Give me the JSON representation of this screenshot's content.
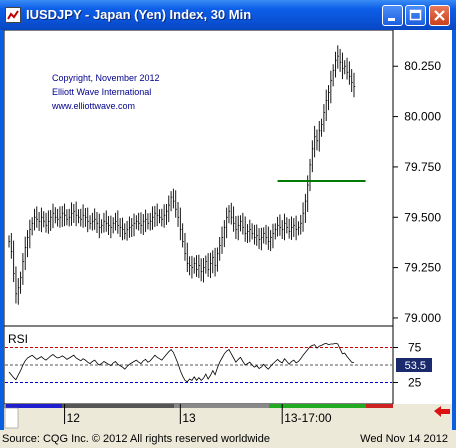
{
  "window": {
    "title": "IUSDJPY - Japan (Yen) Index, 30 Min",
    "buttons": [
      "minimize-button",
      "maximize-button",
      "close-button"
    ]
  },
  "copyright": {
    "line1": "Copyright, November 2012",
    "line2": "Elliott Wave International",
    "line3": "www.elliottwave.com"
  },
  "footer": {
    "source": "Source: CQG Inc. © 2012 All rights reserved worldwide",
    "date": "Wed Nov 14 2012"
  },
  "colors": {
    "candles": "#000000",
    "horizontal_line": "#007a00",
    "rsi_line": "#000000",
    "rsi_upper": "#cc0000",
    "rsi_mid": "#555555",
    "rsi_lower": "#0000cc",
    "copyright_text": "#00008b",
    "rsi_value_box": "#1a2a6c"
  },
  "chart_data": [
    {
      "type": "bar",
      "title": "IUSDJPY - Japan (Yen) Index, 30 Min",
      "y_ticks": [
        "80.250",
        "80.000",
        "79.750",
        "79.500",
        "79.250",
        "79.000"
      ],
      "ylim": [
        78.96,
        80.43
      ],
      "x_ticks": [
        "12",
        "13",
        "13-17:00"
      ],
      "horizontal_line": {
        "value": 79.68,
        "x_start_bar": 116,
        "x_end_bar": 154
      },
      "close": [
        79.38,
        79.33,
        79.22,
        79.12,
        79.15,
        79.2,
        79.28,
        79.35,
        79.4,
        79.44,
        79.47,
        79.5,
        79.49,
        79.48,
        79.5,
        79.48,
        79.46,
        79.48,
        79.5,
        79.52,
        79.5,
        79.49,
        79.5,
        79.52,
        79.51,
        79.49,
        79.5,
        79.52,
        79.53,
        79.51,
        79.5,
        79.49,
        79.51,
        79.5,
        79.48,
        79.47,
        79.48,
        79.49,
        79.47,
        79.45,
        79.46,
        79.48,
        79.47,
        79.46,
        79.45,
        79.47,
        79.48,
        79.46,
        79.45,
        79.44,
        79.42,
        79.44,
        79.45,
        79.46,
        79.47,
        79.48,
        79.47,
        79.46,
        79.48,
        79.49,
        79.47,
        79.48,
        79.5,
        79.52,
        79.51,
        79.5,
        79.49,
        79.51,
        79.53,
        79.56,
        79.6,
        79.58,
        79.54,
        79.5,
        79.44,
        79.38,
        79.32,
        79.27,
        79.26,
        79.25,
        79.27,
        79.24,
        79.26,
        79.23,
        79.25,
        79.28,
        79.24,
        79.27,
        79.3,
        79.26,
        79.32,
        79.36,
        79.4,
        79.45,
        79.5,
        79.53,
        79.5,
        79.47,
        79.44,
        79.46,
        79.48,
        79.45,
        79.42,
        79.43,
        79.44,
        79.42,
        79.4,
        79.41,
        79.39,
        79.4,
        79.42,
        79.4,
        79.38,
        79.4,
        79.42,
        79.44,
        79.46,
        79.45,
        79.44,
        79.47,
        79.45,
        79.43,
        79.45,
        79.46,
        79.44,
        79.45,
        79.47,
        79.52,
        79.58,
        79.66,
        79.76,
        79.84,
        79.9,
        79.88,
        79.93,
        79.96,
        80.02,
        80.08,
        80.12,
        80.18,
        80.23,
        80.28,
        80.3,
        80.27,
        80.24,
        80.25,
        80.22,
        80.2,
        80.17,
        80.15
      ]
    },
    {
      "type": "line",
      "title": "RSI",
      "y_ticks": [
        "75",
        "25"
      ],
      "ylim": [
        0,
        100
      ],
      "reference_lines": [
        75,
        50,
        25
      ],
      "current_value_label": "53.5",
      "values": [
        40,
        36,
        32,
        29,
        36,
        42,
        50,
        56,
        60,
        62,
        64,
        61,
        58,
        60,
        62,
        59,
        57,
        60,
        63,
        65,
        62,
        60,
        61,
        63,
        61,
        58,
        60,
        62,
        64,
        60,
        58,
        56,
        59,
        57,
        54,
        52,
        55,
        57,
        53,
        50,
        52,
        55,
        53,
        51,
        49,
        53,
        55,
        51,
        49,
        47,
        44,
        48,
        51,
        53,
        55,
        57,
        54,
        52,
        56,
        58,
        54,
        56,
        60,
        64,
        61,
        59,
        57,
        61,
        65,
        69,
        72,
        68,
        60,
        52,
        42,
        34,
        28,
        26,
        30,
        28,
        33,
        28,
        32,
        28,
        31,
        37,
        30,
        35,
        42,
        36,
        46,
        54,
        60,
        66,
        70,
        72,
        66,
        60,
        54,
        58,
        61,
        55,
        50,
        52,
        54,
        50,
        47,
        49,
        45,
        47,
        51,
        47,
        44,
        48,
        52,
        55,
        58,
        55,
        53,
        59,
        55,
        51,
        55,
        57,
        53,
        55,
        59,
        64,
        68,
        72,
        76,
        78,
        79,
        74,
        77,
        78,
        80,
        81,
        79,
        80,
        80,
        81,
        80,
        73,
        66,
        67,
        62,
        58,
        54,
        53.5
      ]
    }
  ]
}
